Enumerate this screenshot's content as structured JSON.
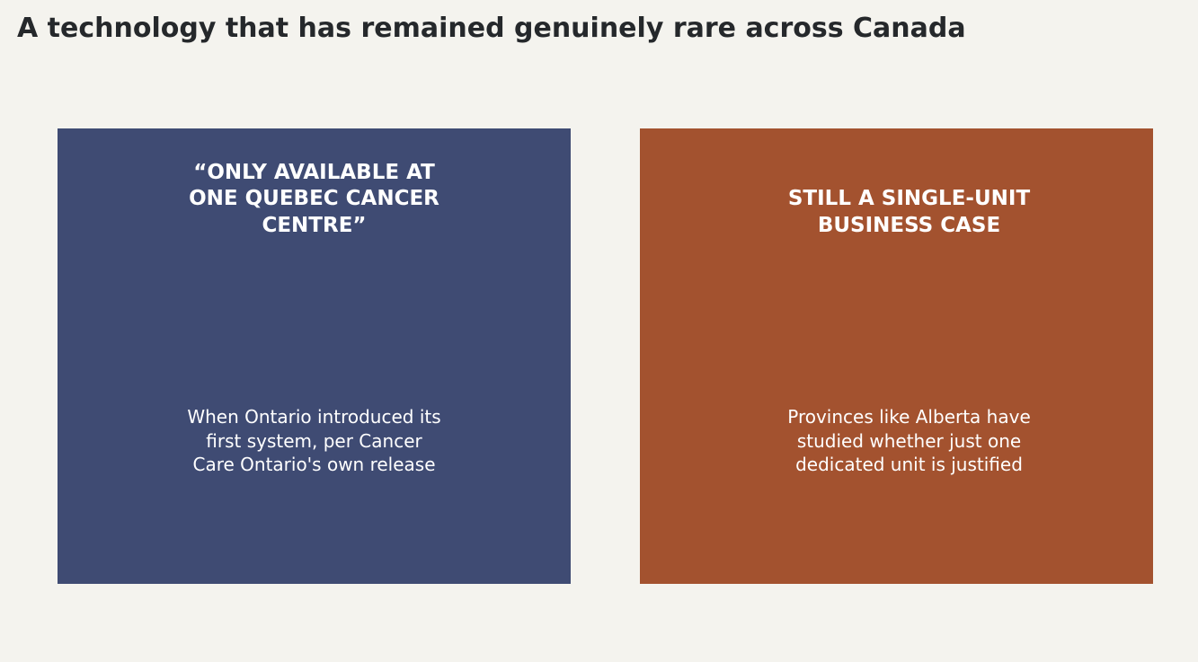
{
  "header": {
    "title": "A technology that has remained genuinely rare across Canada"
  },
  "cards": [
    {
      "heading": [
        "“ONLY AVAILABLE AT",
        "ONE QUEBEC CANCER",
        "CENTRE”"
      ],
      "body": [
        "When Ontario introduced its",
        "first system, per Cancer",
        "Care Ontario's own release"
      ]
    },
    {
      "heading": [
        "STILL A SINGLE-UNIT",
        "BUSINESS CASE"
      ],
      "body": [
        "Provinces like Alberta have",
        "studied whether just one",
        "dedicated unit is justified"
      ]
    }
  ]
}
